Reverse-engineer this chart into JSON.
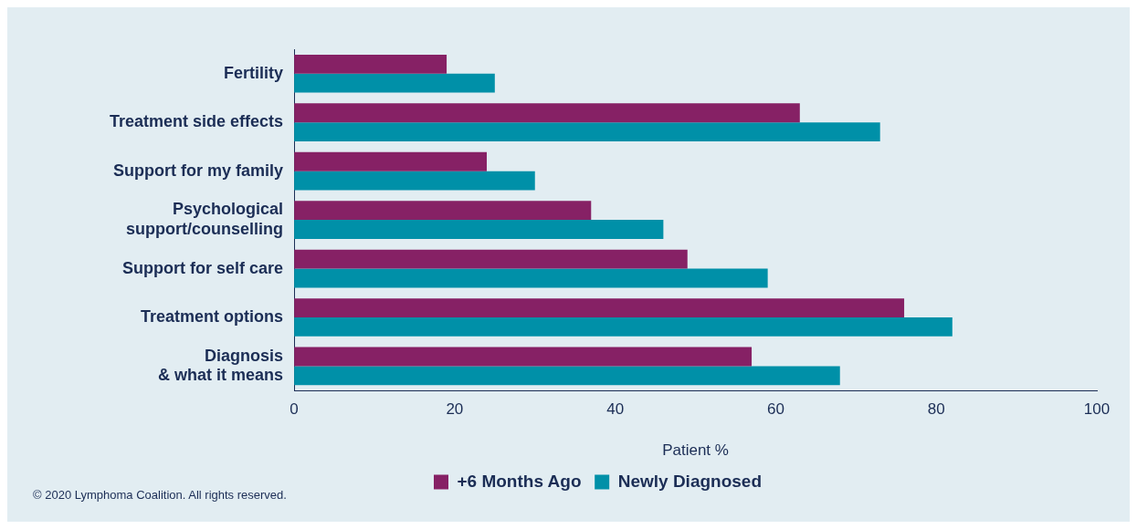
{
  "chart_data": {
    "type": "bar",
    "orientation": "horizontal",
    "categories": [
      "Fertility",
      "Treatment side effects",
      "Support for my family",
      "Psychological support/counselling",
      "Support for self care",
      "Treatment options",
      "Diagnosis & what it means"
    ],
    "series": [
      {
        "name": "+6 Months Ago",
        "color": "#862165",
        "values": [
          19,
          63,
          24,
          37,
          49,
          76,
          57
        ]
      },
      {
        "name": "Newly Diagnosed",
        "color": "#0090a8",
        "values": [
          25,
          73,
          30,
          46,
          59,
          82,
          68
        ]
      }
    ],
    "xlabel": "Patient %",
    "xlim": [
      0,
      100
    ],
    "xticks": [
      0,
      20,
      40,
      60,
      80,
      100
    ],
    "grid": false,
    "legend": "bottom",
    "annotations": [
      "© 2020 Lymphoma Coalition. All rights reserved."
    ]
  }
}
